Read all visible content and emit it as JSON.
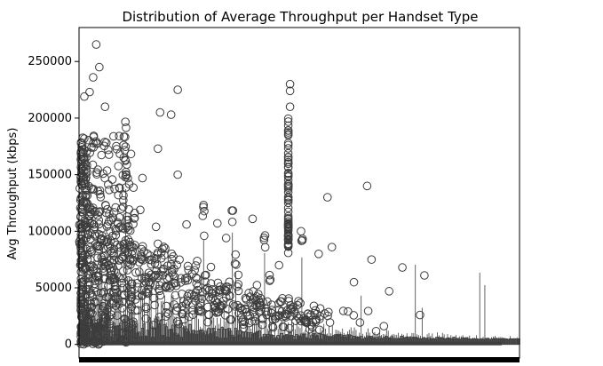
{
  "chart_data": {
    "type": "box",
    "title": "Distribution of Average Throughput per Handset Type",
    "xlabel": "",
    "ylabel": "Avg Throughput (kbps)",
    "ylim": [
      -12000,
      280000
    ],
    "yticks": [
      0,
      50000,
      100000,
      150000,
      200000,
      250000
    ],
    "ytick_labels": [
      "0",
      "50000",
      "100000",
      "150000",
      "200000",
      "250000"
    ],
    "x_tick_labels_visible": false,
    "grid": false,
    "legend": "none",
    "box_color": "#3d3d3d",
    "highlighted_outliers": [
      {
        "category_fraction": 0.035,
        "value": 265000
      },
      {
        "category_fraction": 0.042,
        "value": 245000
      },
      {
        "category_fraction": 0.028,
        "value": 236000
      },
      {
        "category_fraction": 0.02,
        "value": 223000
      },
      {
        "category_fraction": 0.008,
        "value": 219000
      },
      {
        "category_fraction": 0.055,
        "value": 210000
      },
      {
        "category_fraction": 0.22,
        "value": 225000
      },
      {
        "category_fraction": 0.18,
        "value": 205000
      },
      {
        "category_fraction": 0.205,
        "value": 203000
      },
      {
        "category_fraction": 0.475,
        "value": 230000
      },
      {
        "category_fraction": 0.475,
        "value": 224000
      },
      {
        "category_fraction": 0.475,
        "value": 210000
      },
      {
        "category_fraction": 0.175,
        "value": 173000
      },
      {
        "category_fraction": 0.22,
        "value": 150000
      },
      {
        "category_fraction": 0.14,
        "value": 147000
      },
      {
        "category_fraction": 0.56,
        "value": 130000
      },
      {
        "category_fraction": 0.65,
        "value": 140000
      },
      {
        "category_fraction": 0.24,
        "value": 106000
      },
      {
        "category_fraction": 0.31,
        "value": 107000
      },
      {
        "category_fraction": 0.39,
        "value": 111000
      },
      {
        "category_fraction": 0.5,
        "value": 100000
      },
      {
        "category_fraction": 0.57,
        "value": 86000
      },
      {
        "category_fraction": 0.62,
        "value": 55000
      },
      {
        "category_fraction": 0.66,
        "value": 75000
      },
      {
        "category_fraction": 0.7,
        "value": 47000
      },
      {
        "category_fraction": 0.73,
        "value": 68000
      },
      {
        "category_fraction": 0.78,
        "value": 61000
      },
      {
        "category_fraction": 0.77,
        "value": 26000
      },
      {
        "category_fraction": 0.54,
        "value": 80000
      },
      {
        "category_fraction": 0.45,
        "value": 70000
      },
      {
        "category_fraction": 0.33,
        "value": 94000
      },
      {
        "category_fraction": 0.28,
        "value": 96000
      }
    ]
  }
}
